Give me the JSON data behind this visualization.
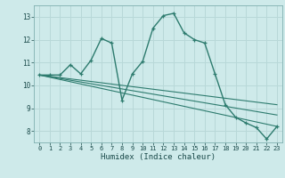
{
  "xlabel": "Humidex (Indice chaleur)",
  "background_color": "#ceeaea",
  "grid_color": "#b8d8d8",
  "line_color": "#2d7b6e",
  "xlim": [
    -0.5,
    23.5
  ],
  "ylim": [
    7.5,
    13.5
  ],
  "xticks": [
    0,
    1,
    2,
    3,
    4,
    5,
    6,
    7,
    8,
    9,
    10,
    11,
    12,
    13,
    14,
    15,
    16,
    17,
    18,
    19,
    20,
    21,
    22,
    23
  ],
  "yticks": [
    8,
    9,
    10,
    11,
    12,
    13
  ],
  "curve1_x": [
    0,
    1,
    2,
    3,
    4,
    5,
    6,
    7,
    8,
    9,
    10,
    11,
    12,
    13,
    14,
    15,
    16,
    17,
    18,
    19,
    20,
    21,
    22,
    23
  ],
  "curve1_y": [
    10.45,
    10.45,
    10.45,
    10.9,
    10.5,
    11.1,
    12.05,
    11.85,
    9.35,
    10.5,
    11.05,
    12.5,
    13.05,
    13.15,
    12.3,
    12.0,
    11.85,
    10.5,
    9.15,
    8.6,
    8.35,
    8.15,
    7.65,
    8.2
  ],
  "line2_x": [
    0,
    23
  ],
  "line2_y": [
    10.45,
    8.2
  ],
  "line3_x": [
    0,
    23
  ],
  "line3_y": [
    10.45,
    8.7
  ],
  "line4_x": [
    0,
    23
  ],
  "line4_y": [
    10.45,
    9.15
  ]
}
